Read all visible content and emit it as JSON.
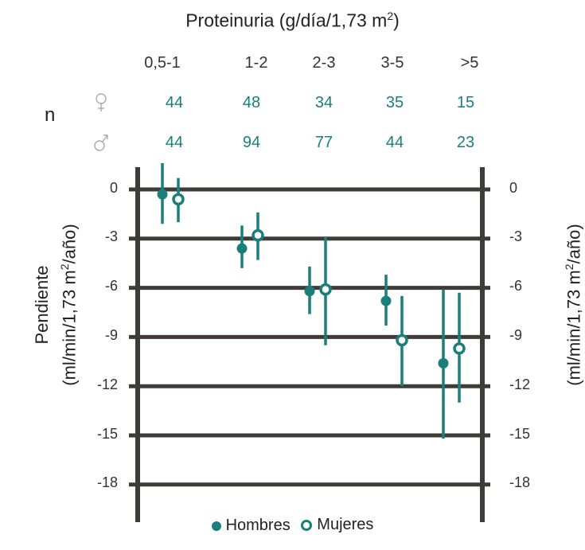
{
  "title": "Proteinuria (g/día/1,73 m",
  "title_sup": "2",
  "title_end": ")",
  "n_label": "n",
  "female_icon": "female-symbol-icon",
  "male_icon": "male-symbol-icon",
  "colors": {
    "series": "#1a7f7a",
    "grid": "#3f3b37",
    "text": "#222222"
  },
  "counts": {
    "female": [
      "44",
      "48",
      "34",
      "35",
      "15"
    ],
    "male": [
      "44",
      "94",
      "77",
      "44",
      "23"
    ]
  },
  "ylabel": {
    "line1": "Pendiente",
    "line2_pre": "(ml/min/1,73 m",
    "line2_sup": "2",
    "line2_post": "/año)",
    "right_pre": "(ml/min/1,73 m",
    "right_sup": "2",
    "right_post": "/año)"
  },
  "chart_data": {
    "type": "scatter",
    "categories": [
      "0,5-1",
      "1-2",
      "2-3",
      "3-5",
      ">5"
    ],
    "yticks": [
      "0",
      "-3",
      "-6",
      "-9",
      "-12",
      "-15",
      "-18"
    ],
    "ylim": [
      -20,
      1.5
    ],
    "grid": true,
    "legend": "bottom",
    "series": [
      {
        "name": "Hombres",
        "marker": "filled",
        "values": [
          -0.3,
          -3.6,
          -6.2,
          -6.8,
          -10.6
        ],
        "lower": [
          -2.1,
          -4.8,
          -7.6,
          -8.3,
          -15.2
        ],
        "upper": [
          1.6,
          -2.2,
          -4.7,
          -5.2,
          -6.1
        ]
      },
      {
        "name": "Mujeres",
        "marker": "hollow",
        "values": [
          -0.6,
          -2.8,
          -6.1,
          -9.2,
          -9.7
        ],
        "lower": [
          -2.0,
          -4.3,
          -9.5,
          -12.0,
          -13.0
        ],
        "upper": [
          0.7,
          -1.4,
          -2.9,
          -6.5,
          -6.3
        ]
      }
    ]
  }
}
